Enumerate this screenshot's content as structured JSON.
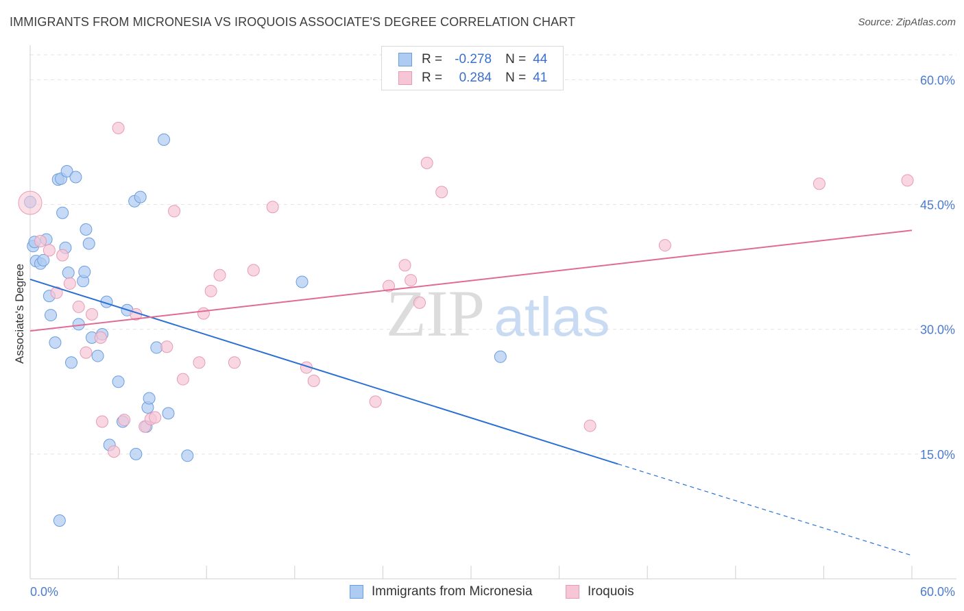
{
  "title": "IMMIGRANTS FROM MICRONESIA VS IROQUOIS ASSOCIATE'S DEGREE CORRELATION CHART",
  "source": "Source: ZipAtlas.com",
  "watermark": {
    "zip": "ZIP",
    "atlas": "atlas"
  },
  "legend": {
    "r_label": "R =",
    "n_label": "N =",
    "rows": [
      {
        "r": "-0.278",
        "n": "44"
      },
      {
        "r": "0.284",
        "n": "41"
      }
    ]
  },
  "bottom_legend": [
    "Immigrants from Micronesia",
    "Iroquois"
  ],
  "colors": {
    "blue_fill": "#aecbf2",
    "blue_stroke": "#6a9de0",
    "blue_line": "#2a6fd4",
    "pink_fill": "#f7c6d6",
    "pink_stroke": "#e89ab4",
    "pink_line": "#e06a95",
    "tick_text": "#4a7bd0",
    "grid": "#e2e2e2"
  },
  "chart_data": {
    "type": "scatter",
    "xlabel": "",
    "ylabel": "Associate's Degree",
    "xlim": [
      0,
      60
    ],
    "ylim": [
      0,
      63
    ],
    "x_tick_labels": [
      "0.0%",
      "60.0%"
    ],
    "y_ticks": [
      15,
      30,
      45,
      60
    ],
    "y_tick_labels": [
      "15.0%",
      "30.0%",
      "45.0%",
      "60.0%"
    ],
    "grid": "horizontal dashed",
    "legend_position": "top-center",
    "series": [
      {
        "name": "Immigrants from Micronesia",
        "color": "#aecbf2",
        "r": -0.278,
        "n": 44,
        "points": [
          [
            0.0,
            45.3
          ],
          [
            0.2,
            40.0
          ],
          [
            0.4,
            38.2
          ],
          [
            0.7,
            37.9
          ],
          [
            0.9,
            38.3
          ],
          [
            1.1,
            40.8
          ],
          [
            1.3,
            34.0
          ],
          [
            1.4,
            31.7
          ],
          [
            1.7,
            28.4
          ],
          [
            1.9,
            48.0
          ],
          [
            2.1,
            48.1
          ],
          [
            2.2,
            44.0
          ],
          [
            2.4,
            39.8
          ],
          [
            2.5,
            49.0
          ],
          [
            2.6,
            36.8
          ],
          [
            2.8,
            26.0
          ],
          [
            3.1,
            48.3
          ],
          [
            3.3,
            30.6
          ],
          [
            3.6,
            35.8
          ],
          [
            3.7,
            36.9
          ],
          [
            3.8,
            42.0
          ],
          [
            4.0,
            40.3
          ],
          [
            4.2,
            29.0
          ],
          [
            4.6,
            26.8
          ],
          [
            4.9,
            29.4
          ],
          [
            5.2,
            33.3
          ],
          [
            5.4,
            16.1
          ],
          [
            6.0,
            23.7
          ],
          [
            6.3,
            18.9
          ],
          [
            6.6,
            32.3
          ],
          [
            7.1,
            45.4
          ],
          [
            7.2,
            15.0
          ],
          [
            7.5,
            45.9
          ],
          [
            7.9,
            18.3
          ],
          [
            8.0,
            20.6
          ],
          [
            8.1,
            21.7
          ],
          [
            8.6,
            27.8
          ],
          [
            9.1,
            52.8
          ],
          [
            9.4,
            19.9
          ],
          [
            10.7,
            14.8
          ],
          [
            18.5,
            35.7
          ],
          [
            32.0,
            26.7
          ],
          [
            2.0,
            7.0
          ],
          [
            0.3,
            40.5
          ]
        ]
      },
      {
        "name": "Iroquois",
        "color": "#f7c6d6",
        "r": 0.284,
        "n": 41,
        "points": [
          [
            0.0,
            45.2
          ],
          [
            0.7,
            40.6
          ],
          [
            1.3,
            39.5
          ],
          [
            1.8,
            34.4
          ],
          [
            2.2,
            38.9
          ],
          [
            2.7,
            35.5
          ],
          [
            3.3,
            32.7
          ],
          [
            3.8,
            27.2
          ],
          [
            4.2,
            31.8
          ],
          [
            4.8,
            29.0
          ],
          [
            4.9,
            18.9
          ],
          [
            5.7,
            15.3
          ],
          [
            6.0,
            54.2
          ],
          [
            6.4,
            19.1
          ],
          [
            7.2,
            31.8
          ],
          [
            7.8,
            18.3
          ],
          [
            8.2,
            19.2
          ],
          [
            8.5,
            19.4
          ],
          [
            9.3,
            27.9
          ],
          [
            9.8,
            44.2
          ],
          [
            10.4,
            24.0
          ],
          [
            11.5,
            26.0
          ],
          [
            11.8,
            31.9
          ],
          [
            12.3,
            34.6
          ],
          [
            12.9,
            36.5
          ],
          [
            13.9,
            26.0
          ],
          [
            15.2,
            37.1
          ],
          [
            16.5,
            44.7
          ],
          [
            18.8,
            25.4
          ],
          [
            19.3,
            23.8
          ],
          [
            23.5,
            21.3
          ],
          [
            24.4,
            35.2
          ],
          [
            25.5,
            37.7
          ],
          [
            25.9,
            35.9
          ],
          [
            26.5,
            33.2
          ],
          [
            27.0,
            50.0
          ],
          [
            28.0,
            46.5
          ],
          [
            38.1,
            18.4
          ],
          [
            43.2,
            40.1
          ],
          [
            53.7,
            47.5
          ],
          [
            59.7,
            47.9
          ]
        ]
      }
    ],
    "trend_lines": [
      {
        "series": "Immigrants from Micronesia",
        "from": [
          0,
          36.0
        ],
        "to": [
          40,
          13.8
        ],
        "dashed_to": [
          60,
          2.8
        ]
      },
      {
        "series": "Iroquois",
        "from": [
          0,
          29.8
        ],
        "to": [
          60,
          41.9
        ]
      }
    ]
  }
}
